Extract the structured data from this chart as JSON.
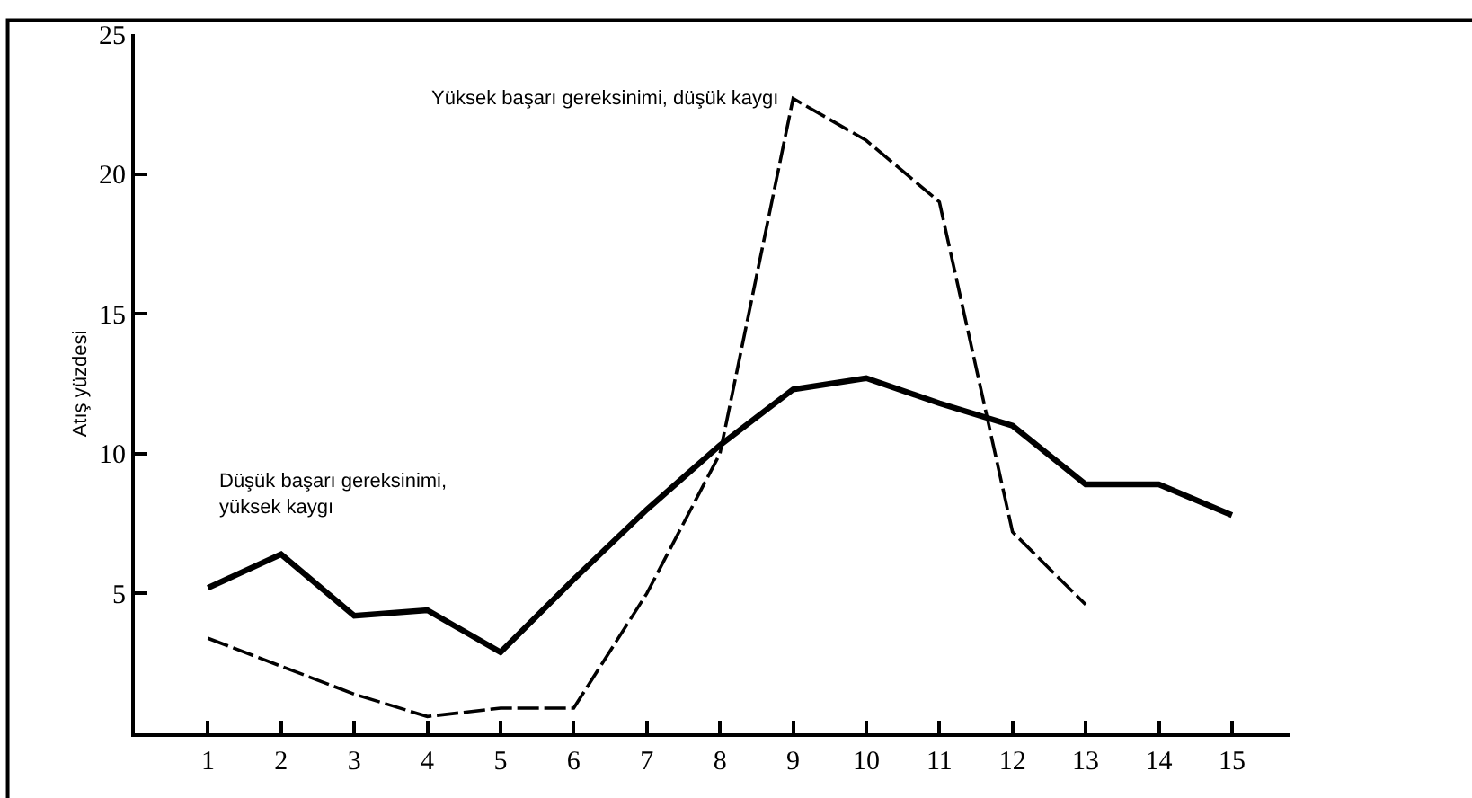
{
  "chart_data": {
    "type": "line",
    "ylabel": "Atış yüzdesi",
    "x": [
      1,
      2,
      3,
      4,
      5,
      6,
      7,
      8,
      9,
      10,
      11,
      12,
      13,
      14,
      15
    ],
    "xlim": [
      0,
      15.8
    ],
    "ylim": [
      0,
      25
    ],
    "xticks": [
      1,
      2,
      3,
      4,
      5,
      6,
      7,
      8,
      9,
      10,
      11,
      12,
      13,
      14,
      15
    ],
    "yticks": [
      5,
      10,
      15,
      20,
      25
    ],
    "legend": false,
    "marker": "none",
    "series": [
      {
        "name": "Düşük başarı gereksinimi,\nyüksek kaygı",
        "color": "#000000",
        "line_style": "solid",
        "values": [
          5.2,
          6.4,
          4.2,
          4.4,
          2.9,
          5.5,
          8.0,
          10.3,
          12.3,
          12.7,
          11.8,
          11.0,
          8.9,
          8.9,
          7.8
        ]
      },
      {
        "name": "Yüksek başarı gereksinimi, düşük kaygı",
        "color": "#000000",
        "line_style": "dashed",
        "values": [
          3.4,
          2.4,
          1.4,
          0.6,
          0.9,
          0.9,
          5.0,
          10.0,
          22.7,
          21.2,
          19.0,
          7.2,
          4.6,
          null,
          null
        ]
      }
    ]
  }
}
